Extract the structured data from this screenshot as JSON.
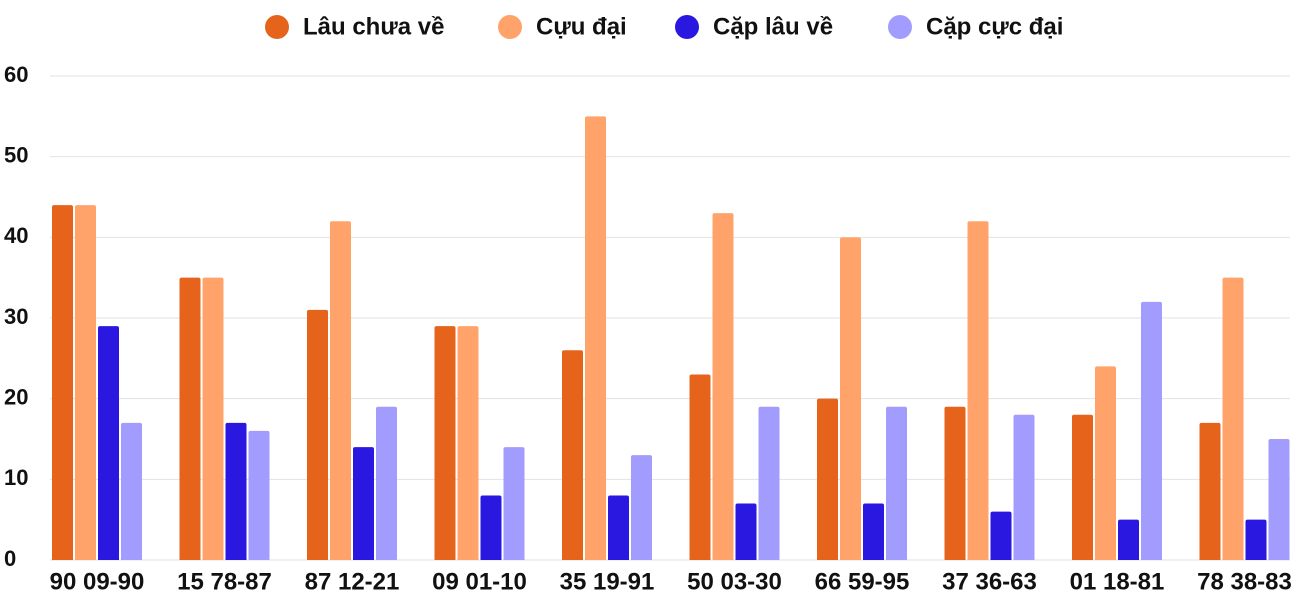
{
  "chart_data": {
    "type": "bar",
    "categories": [
      "90 09-90",
      "15 78-87",
      "87 12-21",
      "09 01-10",
      "35 19-91",
      "50 03-30",
      "66 59-95",
      "37 36-63",
      "01 18-81",
      "78 38-83"
    ],
    "series": [
      {
        "name": "Lâu chưa về",
        "color": "#e5631a",
        "values": [
          44,
          35,
          31,
          29,
          26,
          23,
          20,
          19,
          18,
          17
        ]
      },
      {
        "name": "Cựu đại",
        "color": "#ffa36b",
        "values": [
          44,
          35,
          42,
          29,
          55,
          43,
          40,
          42,
          24,
          35
        ]
      },
      {
        "name": "Cặp lâu về",
        "color": "#2a17e0",
        "values": [
          29,
          17,
          14,
          8,
          8,
          7,
          7,
          6,
          5,
          5
        ]
      },
      {
        "name": "Cặp cực đại",
        "color": "#a39cff",
        "values": [
          17,
          16,
          19,
          14,
          13,
          19,
          19,
          18,
          32,
          15
        ]
      }
    ],
    "ylim": [
      0,
      60
    ],
    "yticks": [
      0,
      10,
      20,
      30,
      40,
      50,
      60
    ],
    "grid": true,
    "legend": "top"
  }
}
